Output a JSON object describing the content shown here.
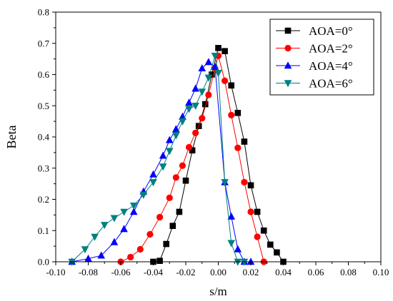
{
  "chart_data": {
    "type": "line",
    "title": "",
    "xlabel": "s/m",
    "ylabel": "Beta",
    "xlim": [
      -0.1,
      0.1
    ],
    "ylim": [
      0.0,
      0.8
    ],
    "xticks": [
      -0.1,
      -0.08,
      -0.06,
      -0.04,
      -0.02,
      0.0,
      0.02,
      0.04,
      0.06,
      0.08,
      0.1
    ],
    "yticks": [
      0.0,
      0.1,
      0.2,
      0.3,
      0.4,
      0.5,
      0.6,
      0.7,
      0.8
    ],
    "xtick_labels": [
      "-0.10",
      "-0.08",
      "-0.06",
      "-0.04",
      "-0.02",
      "0.00",
      "0.02",
      "0.04",
      "0.06",
      "0.08",
      "0.10"
    ],
    "ytick_labels": [
      "0.0",
      "0.1",
      "0.2",
      "0.3",
      "0.4",
      "0.5",
      "0.6",
      "0.7",
      "0.8"
    ],
    "grid": false,
    "legend_position": "top-right",
    "series": [
      {
        "name": "AOA=0°",
        "color": "#000000",
        "marker": "square",
        "x": [
          -0.04,
          -0.036,
          -0.032,
          -0.028,
          -0.024,
          -0.02,
          -0.016,
          -0.012,
          -0.008,
          -0.004,
          0.0,
          0.004,
          0.008,
          0.012,
          0.016,
          0.02,
          0.024,
          0.028,
          0.032,
          0.036,
          0.04
        ],
        "y": [
          0.0,
          0.003,
          0.057,
          0.115,
          0.16,
          0.26,
          0.357,
          0.435,
          0.505,
          0.6,
          0.685,
          0.675,
          0.565,
          0.477,
          0.385,
          0.245,
          0.16,
          0.1,
          0.055,
          0.03,
          0.0
        ]
      },
      {
        "name": "AOA=2°",
        "color": "#ff0000",
        "marker": "circle",
        "x": [
          -0.06,
          -0.054,
          -0.048,
          -0.042,
          -0.036,
          -0.03,
          -0.026,
          -0.022,
          -0.018,
          -0.014,
          -0.01,
          -0.006,
          -0.002,
          0.0,
          0.004,
          0.008,
          0.012,
          0.016,
          0.02,
          0.024,
          0.028
        ],
        "y": [
          0.0,
          0.015,
          0.04,
          0.088,
          0.143,
          0.205,
          0.27,
          0.308,
          0.367,
          0.413,
          0.46,
          0.535,
          0.62,
          0.66,
          0.58,
          0.47,
          0.365,
          0.255,
          0.16,
          0.08,
          0.0
        ]
      },
      {
        "name": "AOA=4°",
        "color": "#0000ff",
        "marker": "triangle-up",
        "x": [
          -0.09,
          -0.08,
          -0.072,
          -0.064,
          -0.058,
          -0.052,
          -0.046,
          -0.04,
          -0.034,
          -0.03,
          -0.026,
          -0.022,
          -0.018,
          -0.014,
          -0.01,
          -0.006,
          -0.002,
          0.004,
          0.008,
          0.012,
          0.016,
          0.02
        ],
        "y": [
          0.0,
          0.01,
          0.02,
          0.063,
          0.105,
          0.16,
          0.225,
          0.28,
          0.34,
          0.39,
          0.425,
          0.465,
          0.51,
          0.555,
          0.62,
          0.64,
          0.625,
          0.255,
          0.145,
          0.04,
          0.0,
          0.0
        ]
      },
      {
        "name": "AOA=6°",
        "color": "#008080",
        "marker": "triangle-down",
        "x": [
          -0.09,
          -0.082,
          -0.076,
          -0.07,
          -0.064,
          -0.058,
          -0.052,
          -0.046,
          -0.04,
          -0.034,
          -0.03,
          -0.026,
          -0.022,
          -0.018,
          -0.014,
          -0.01,
          -0.006,
          -0.002,
          0.0,
          0.004,
          0.008,
          0.012,
          0.016
        ],
        "y": [
          0.0,
          0.04,
          0.08,
          0.118,
          0.14,
          0.16,
          0.18,
          0.215,
          0.255,
          0.305,
          0.355,
          0.405,
          0.45,
          0.49,
          0.5,
          0.545,
          0.59,
          0.66,
          0.605,
          0.255,
          0.06,
          0.0,
          0.0
        ]
      }
    ]
  }
}
